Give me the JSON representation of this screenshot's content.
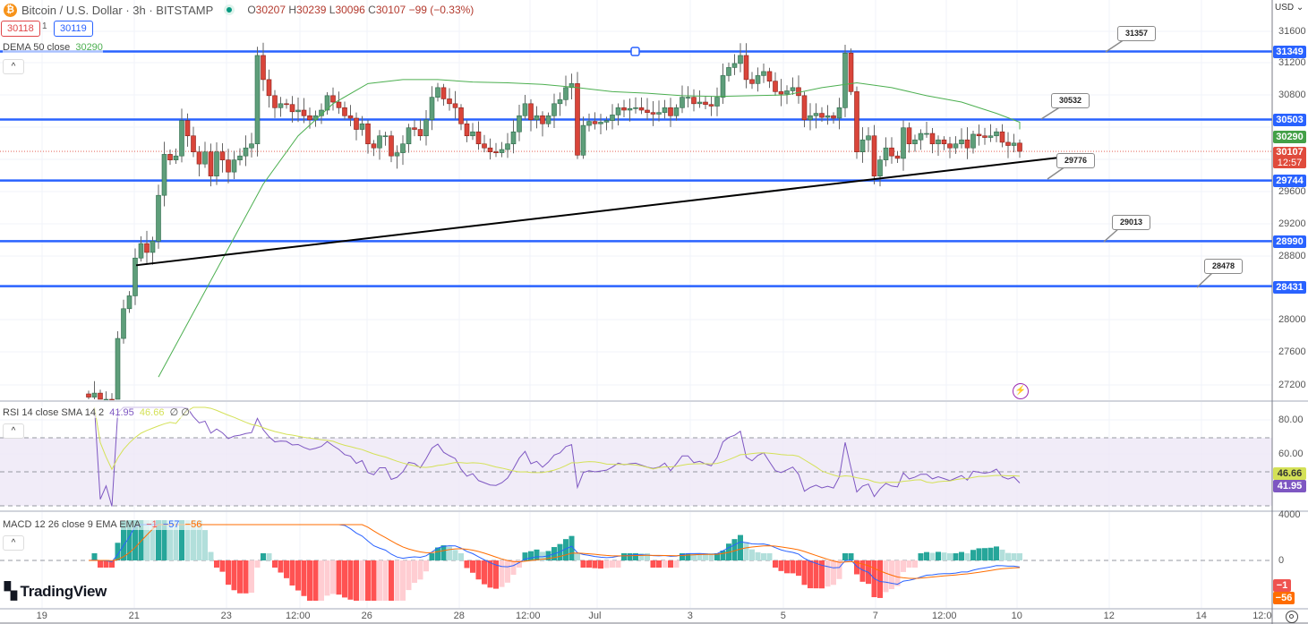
{
  "header": {
    "symbol_title": "Bitcoin / U.S. Dollar · 3h · BITSTAMP",
    "symbol_icon": "bitcoin-icon",
    "market_status": "market-open-dot",
    "ohlc": {
      "open_label": "O",
      "open": "30207",
      "high_label": "H",
      "high": "30239",
      "low_label": "L",
      "low": "30096",
      "close_label": "C",
      "close": "30107",
      "change": "−99 (−0.33%)"
    },
    "sell_price": "30118",
    "spread": "1",
    "buy_price": "30119",
    "currency": "USD ⌄"
  },
  "indicators": {
    "dema": {
      "label": "DEMA 50 close",
      "value": "30290",
      "color": "#4caf50"
    },
    "rsi": {
      "label": "RSI 14 close SMA 14 2",
      "value": "41.95",
      "sma_value": "46.66",
      "extra1": "∅",
      "extra2": "∅",
      "color": "#7e57c2",
      "sma_color": "#d4e157"
    },
    "macd": {
      "label": "MACD 12 26 close 9 EMA EMA",
      "hist": "−1",
      "macd": "−57",
      "signal": "−56",
      "macd_color": "#2962ff",
      "signal_color": "#ff6d00"
    }
  },
  "price_axis": {
    "ticks": [
      "31600",
      "31200",
      "30800",
      "29600",
      "29200",
      "28800",
      "28000",
      "27600",
      "27200"
    ],
    "level_tags": [
      "31349",
      "30503",
      "29744",
      "28990",
      "28431"
    ],
    "dema_tag": "30290",
    "last_price_tag": "30107",
    "countdown": "12:57"
  },
  "rsi_axis": {
    "ticks": [
      "80.00",
      "60.00"
    ],
    "sma_tag": "46.66",
    "rsi_tag": "41.95"
  },
  "macd_axis": {
    "ticks": [
      "4000",
      "0"
    ],
    "hist_tag": "−1",
    "signal_tag": "−56"
  },
  "time_axis": {
    "labels": [
      "19",
      "21",
      "23",
      "12:00",
      "26",
      "28",
      "12:00",
      "Jul",
      "3",
      "5",
      "7",
      "12:00",
      "10",
      "12",
      "14",
      "12:0"
    ]
  },
  "callouts": [
    "31357",
    "30532",
    "29776",
    "29013",
    "28478"
  ],
  "branding": {
    "logo_text": "TradingView"
  },
  "colors": {
    "up": "#5e9e7a",
    "down": "#d9453a",
    "level_line": "#2962ff",
    "trendline": "#000000",
    "rsi_band": "#ede7f6"
  },
  "chart_data": {
    "type": "candlestick",
    "title": "Bitcoin / U.S. Dollar · 3h · BITSTAMP",
    "ylim": [
      27000,
      31700
    ],
    "closes": [
      27050,
      27100,
      27000,
      27020,
      26950,
      27780,
      28150,
      28310,
      28780,
      28960,
      28850,
      28990,
      29560,
      30070,
      30000,
      30050,
      30490,
      30300,
      30100,
      29950,
      30100,
      29800,
      30100,
      30000,
      29850,
      30000,
      30050,
      30150,
      30200,
      31300,
      31000,
      30800,
      30650,
      30700,
      30690,
      30600,
      30620,
      30550,
      30500,
      30550,
      30620,
      30800,
      30720,
      30650,
      30550,
      30520,
      30380,
      30450,
      30200,
      30150,
      30300,
      30300,
      30050,
      30090,
      30200,
      30400,
      30380,
      30300,
      30500,
      30780,
      30900,
      30760,
      30700,
      30650,
      30450,
      30300,
      30350,
      30200,
      30150,
      30100,
      30090,
      30130,
      30200,
      30350,
      30550,
      30700,
      30500,
      30550,
      30450,
      30550,
      30700,
      30750,
      30900,
      30950,
      30060,
      30430,
      30480,
      30450,
      30470,
      30490,
      30560,
      30650,
      30620,
      30640,
      30650,
      30620,
      30590,
      30570,
      30590,
      30650,
      30550,
      30650,
      30780,
      30780,
      30700,
      30720,
      30690,
      30670,
      30780,
      31050,
      31150,
      31200,
      31300,
      31000,
      30950,
      31050,
      31100,
      30980,
      30850,
      30820,
      30860,
      30900,
      30800,
      30500,
      30550,
      30580,
      30530,
      30550,
      30520,
      30650,
      31330,
      30850,
      30100,
      30250,
      30300,
      29800,
      30000,
      30150,
      30050,
      30020,
      30400,
      30200,
      30250,
      30330,
      30330,
      30200,
      30250,
      30200,
      30150,
      30200,
      30250,
      30150,
      30320,
      30300,
      30280,
      30300,
      30350,
      30220,
      30180,
      30210,
      30107
    ],
    "dema_50_sampled_every_6": [
      26400,
      26700,
      27300,
      28100,
      28900,
      29700,
      30300,
      30700,
      30950,
      31000,
      31000,
      30970,
      30960,
      30940,
      30900,
      30850,
      30830,
      30800,
      30790,
      30800,
      30810,
      30900,
      30960,
      30900,
      30800,
      30720,
      30580,
      30470,
      30380
    ],
    "horizontal_levels": [
      31349,
      30503,
      29744,
      28990,
      28431
    ],
    "trendline": {
      "start_price": 28690,
      "end_price": 30030
    },
    "current_price": 30107
  }
}
